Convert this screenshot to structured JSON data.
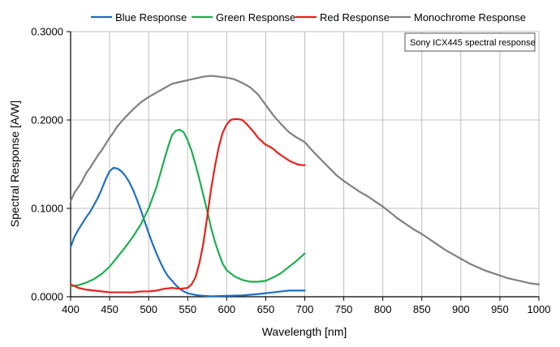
{
  "chart_data": {
    "type": "line",
    "xlabel": "Wavelength [nm]",
    "ylabel": "Spectral Response [A/W]",
    "xlim": [
      400,
      1000
    ],
    "ylim": [
      0,
      0.3
    ],
    "x_ticks": [
      "400",
      "450",
      "500",
      "550",
      "600",
      "650",
      "700",
      "750",
      "800",
      "850",
      "900",
      "950",
      "1000"
    ],
    "y_ticks": [
      "0.0000",
      "0.1000",
      "0.2000",
      "0.3000"
    ],
    "grid": "vertical and horizontal at major ticks",
    "legend_position": "top",
    "annotation": "Sony ICX445 spectral response",
    "series": [
      {
        "name": "Blue Response",
        "color": "#1F6FBF",
        "points": [
          [
            400,
            0.056
          ],
          [
            405,
            0.068
          ],
          [
            410,
            0.076
          ],
          [
            415,
            0.083
          ],
          [
            420,
            0.09
          ],
          [
            425,
            0.096
          ],
          [
            430,
            0.104
          ],
          [
            435,
            0.112
          ],
          [
            440,
            0.122
          ],
          [
            445,
            0.133
          ],
          [
            450,
            0.142
          ],
          [
            455,
            0.146
          ],
          [
            460,
            0.145
          ],
          [
            465,
            0.142
          ],
          [
            470,
            0.137
          ],
          [
            475,
            0.13
          ],
          [
            480,
            0.121
          ],
          [
            485,
            0.11
          ],
          [
            490,
            0.098
          ],
          [
            495,
            0.085
          ],
          [
            500,
            0.072
          ],
          [
            505,
            0.06
          ],
          [
            510,
            0.049
          ],
          [
            515,
            0.039
          ],
          [
            520,
            0.03
          ],
          [
            525,
            0.023
          ],
          [
            530,
            0.018
          ],
          [
            535,
            0.013
          ],
          [
            540,
            0.009
          ],
          [
            545,
            0.006
          ],
          [
            550,
            0.004
          ],
          [
            560,
            0.002
          ],
          [
            570,
            0.001
          ],
          [
            580,
            0.0005
          ],
          [
            600,
            0.001
          ],
          [
            620,
            0.0015
          ],
          [
            640,
            0.003
          ],
          [
            650,
            0.004
          ],
          [
            660,
            0.005
          ],
          [
            670,
            0.006
          ],
          [
            680,
            0.007
          ],
          [
            690,
            0.007
          ],
          [
            700,
            0.007
          ]
        ]
      },
      {
        "name": "Green Response",
        "color": "#1DAF4E",
        "points": [
          [
            400,
            0.012
          ],
          [
            410,
            0.013
          ],
          [
            420,
            0.016
          ],
          [
            430,
            0.02
          ],
          [
            440,
            0.026
          ],
          [
            450,
            0.034
          ],
          [
            460,
            0.045
          ],
          [
            470,
            0.056
          ],
          [
            480,
            0.068
          ],
          [
            490,
            0.082
          ],
          [
            500,
            0.1
          ],
          [
            510,
            0.124
          ],
          [
            520,
            0.155
          ],
          [
            525,
            0.17
          ],
          [
            530,
            0.183
          ],
          [
            535,
            0.188
          ],
          [
            540,
            0.189
          ],
          [
            545,
            0.186
          ],
          [
            550,
            0.177
          ],
          [
            555,
            0.165
          ],
          [
            560,
            0.15
          ],
          [
            565,
            0.133
          ],
          [
            570,
            0.115
          ],
          [
            575,
            0.097
          ],
          [
            580,
            0.078
          ],
          [
            585,
            0.062
          ],
          [
            590,
            0.049
          ],
          [
            595,
            0.037
          ],
          [
            600,
            0.03
          ],
          [
            610,
            0.023
          ],
          [
            620,
            0.019
          ],
          [
            630,
            0.017
          ],
          [
            640,
            0.017
          ],
          [
            650,
            0.018
          ],
          [
            660,
            0.022
          ],
          [
            670,
            0.027
          ],
          [
            680,
            0.034
          ],
          [
            690,
            0.041
          ],
          [
            700,
            0.049
          ]
        ]
      },
      {
        "name": "Red Response",
        "color": "#E8201E",
        "points": [
          [
            400,
            0.014
          ],
          [
            405,
            0.012
          ],
          [
            410,
            0.01
          ],
          [
            420,
            0.008
          ],
          [
            430,
            0.007
          ],
          [
            440,
            0.006
          ],
          [
            450,
            0.005
          ],
          [
            460,
            0.005
          ],
          [
            470,
            0.005
          ],
          [
            480,
            0.005
          ],
          [
            490,
            0.006
          ],
          [
            500,
            0.006
          ],
          [
            510,
            0.007
          ],
          [
            520,
            0.009
          ],
          [
            530,
            0.01
          ],
          [
            540,
            0.009
          ],
          [
            550,
            0.01
          ],
          [
            555,
            0.014
          ],
          [
            560,
            0.022
          ],
          [
            565,
            0.038
          ],
          [
            570,
            0.06
          ],
          [
            575,
            0.09
          ],
          [
            580,
            0.122
          ],
          [
            585,
            0.148
          ],
          [
            590,
            0.17
          ],
          [
            595,
            0.186
          ],
          [
            600,
            0.195
          ],
          [
            605,
            0.2
          ],
          [
            610,
            0.201
          ],
          [
            615,
            0.201
          ],
          [
            620,
            0.2
          ],
          [
            625,
            0.196
          ],
          [
            630,
            0.191
          ],
          [
            635,
            0.186
          ],
          [
            640,
            0.18
          ],
          [
            645,
            0.176
          ],
          [
            650,
            0.172
          ],
          [
            655,
            0.17
          ],
          [
            660,
            0.167
          ],
          [
            665,
            0.163
          ],
          [
            670,
            0.16
          ],
          [
            675,
            0.157
          ],
          [
            680,
            0.154
          ],
          [
            685,
            0.152
          ],
          [
            690,
            0.15
          ],
          [
            695,
            0.149
          ],
          [
            700,
            0.149
          ]
        ]
      },
      {
        "name": "Monochrome Response",
        "color": "#808080",
        "points": [
          [
            400,
            0.108
          ],
          [
            405,
            0.118
          ],
          [
            410,
            0.124
          ],
          [
            415,
            0.131
          ],
          [
            420,
            0.14
          ],
          [
            425,
            0.146
          ],
          [
            430,
            0.153
          ],
          [
            435,
            0.16
          ],
          [
            440,
            0.166
          ],
          [
            445,
            0.173
          ],
          [
            450,
            0.18
          ],
          [
            455,
            0.186
          ],
          [
            460,
            0.193
          ],
          [
            465,
            0.198
          ],
          [
            470,
            0.203
          ],
          [
            480,
            0.212
          ],
          [
            490,
            0.22
          ],
          [
            500,
            0.226
          ],
          [
            510,
            0.231
          ],
          [
            520,
            0.236
          ],
          [
            530,
            0.241
          ],
          [
            540,
            0.243
          ],
          [
            550,
            0.245
          ],
          [
            560,
            0.247
          ],
          [
            570,
            0.249
          ],
          [
            580,
            0.25
          ],
          [
            590,
            0.249
          ],
          [
            600,
            0.248
          ],
          [
            610,
            0.246
          ],
          [
            620,
            0.242
          ],
          [
            630,
            0.237
          ],
          [
            640,
            0.229
          ],
          [
            650,
            0.217
          ],
          [
            660,
            0.205
          ],
          [
            670,
            0.195
          ],
          [
            680,
            0.186
          ],
          [
            690,
            0.18
          ],
          [
            700,
            0.175
          ],
          [
            710,
            0.165
          ],
          [
            720,
            0.156
          ],
          [
            730,
            0.147
          ],
          [
            740,
            0.138
          ],
          [
            750,
            0.131
          ],
          [
            760,
            0.125
          ],
          [
            770,
            0.119
          ],
          [
            780,
            0.114
          ],
          [
            790,
            0.108
          ],
          [
            800,
            0.102
          ],
          [
            810,
            0.095
          ],
          [
            820,
            0.088
          ],
          [
            830,
            0.082
          ],
          [
            840,
            0.076
          ],
          [
            850,
            0.071
          ],
          [
            860,
            0.065
          ],
          [
            870,
            0.059
          ],
          [
            880,
            0.053
          ],
          [
            890,
            0.048
          ],
          [
            900,
            0.043
          ],
          [
            910,
            0.038
          ],
          [
            920,
            0.034
          ],
          [
            930,
            0.03
          ],
          [
            940,
            0.027
          ],
          [
            950,
            0.024
          ],
          [
            960,
            0.021
          ],
          [
            970,
            0.019
          ],
          [
            980,
            0.017
          ],
          [
            990,
            0.015
          ],
          [
            1000,
            0.014
          ]
        ]
      }
    ]
  }
}
